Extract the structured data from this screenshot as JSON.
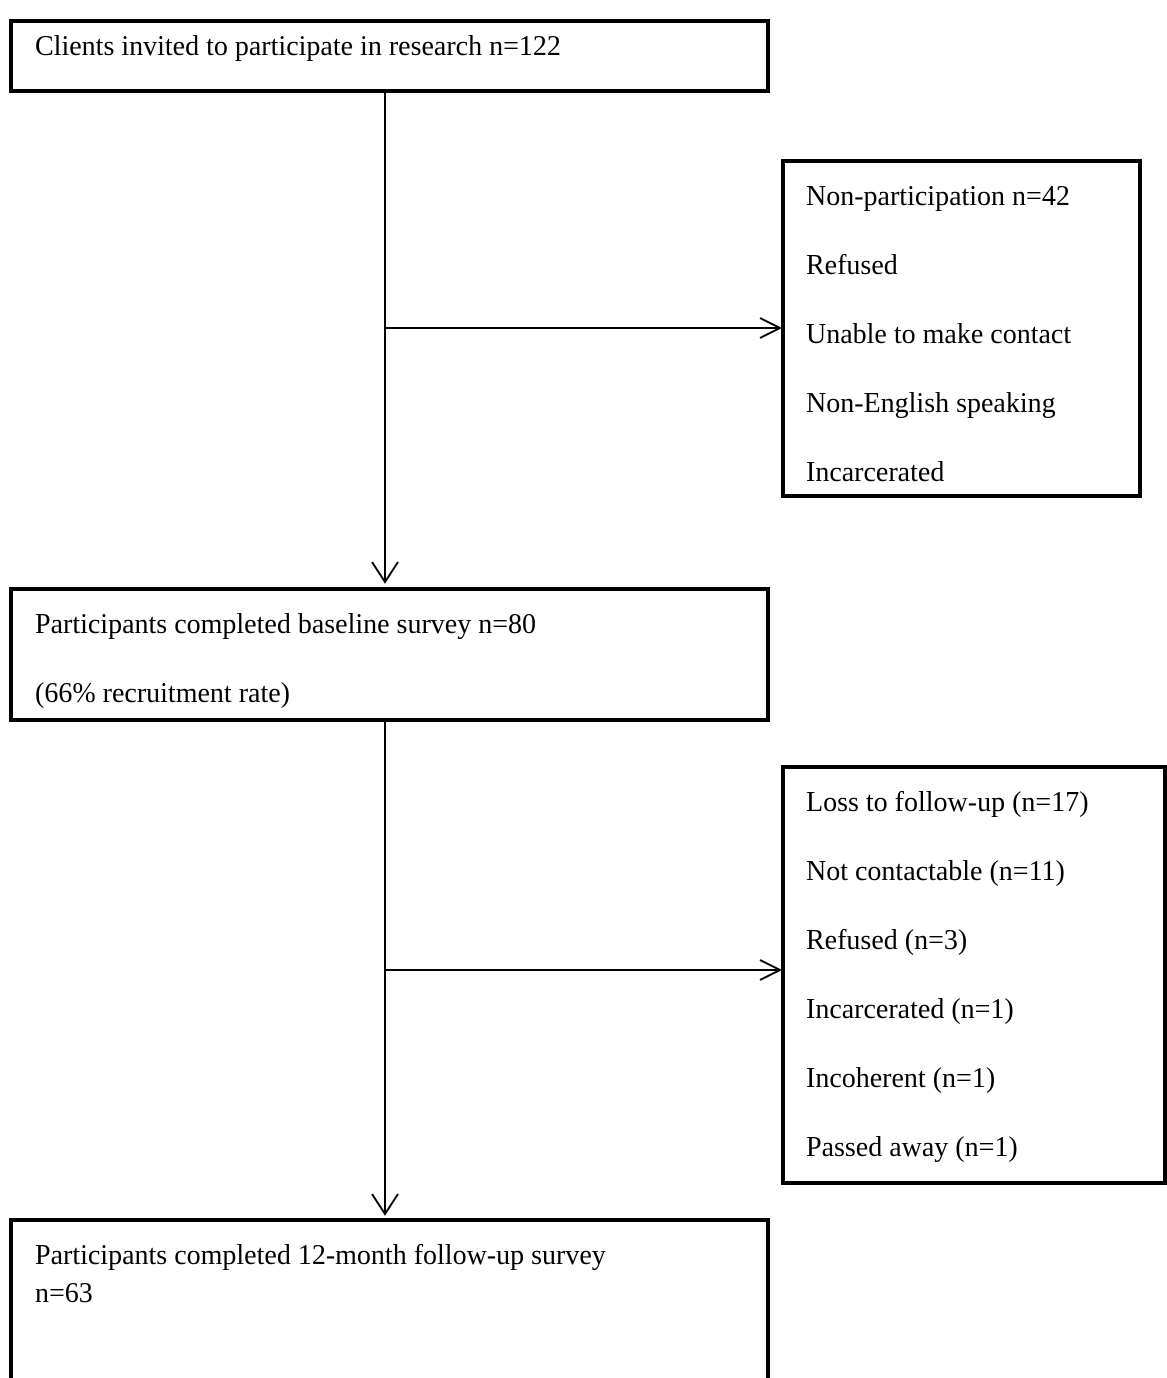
{
  "flowchart": {
    "invited": {
      "lines": [
        "Clients invited to participate in research n=122"
      ]
    },
    "non_participation": {
      "lines": [
        "Non-participation n=42",
        "Refused",
        "Unable to make contact",
        "Non-English speaking",
        "Incarcerated"
      ]
    },
    "baseline": {
      "lines": [
        "Participants completed baseline survey n=80",
        "(66% recruitment rate)"
      ]
    },
    "loss_to_follow_up": {
      "lines": [
        "Loss to follow-up (n=17)",
        "Not contactable (n=11)",
        "Refused (n=3)",
        "Incarcerated (n=1)",
        "Incoherent (n=1)",
        "Passed away (n=1)"
      ]
    },
    "followup": {
      "lines": [
        "Participants completed 12-month follow-up survey",
        "n=63"
      ]
    }
  }
}
